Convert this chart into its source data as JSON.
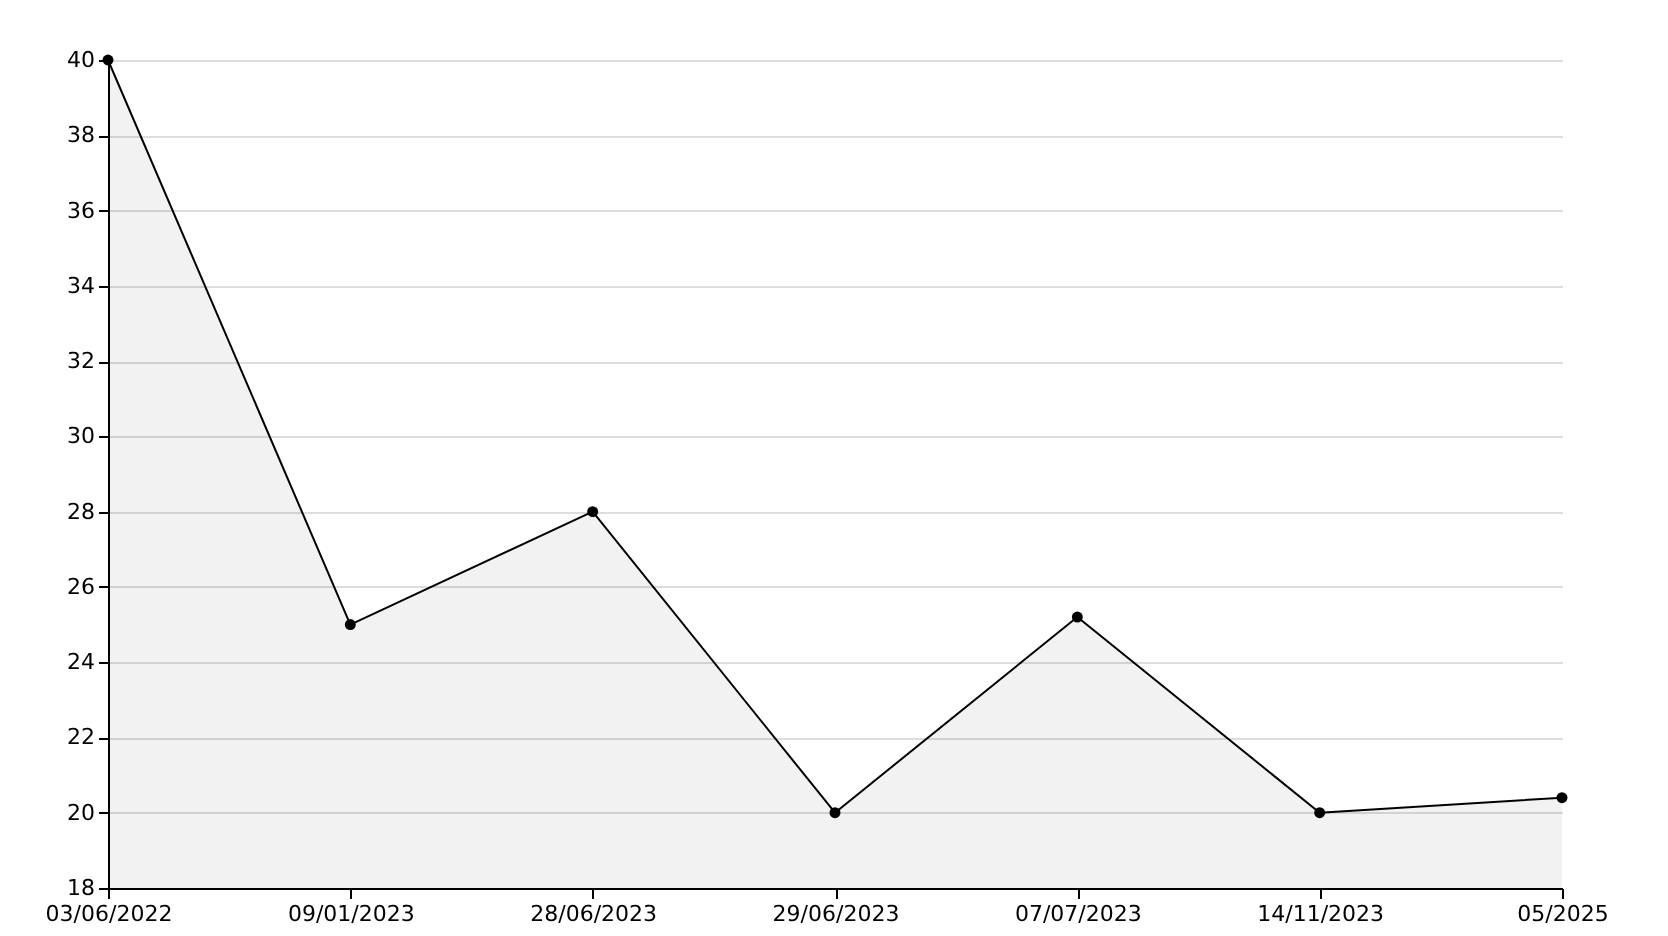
{
  "chart_data": {
    "type": "area",
    "categories": [
      "03/06/2022",
      "09/01/2023",
      "28/06/2023",
      "29/06/2023",
      "07/07/2023",
      "14/11/2023",
      "05/2025"
    ],
    "series": [
      {
        "color": "#000000",
        "values": [
          40,
          25,
          28,
          20,
          25.2,
          20,
          20.4
        ]
      }
    ],
    "ylim": [
      18,
      40
    ],
    "yticks": [
      18,
      20,
      22,
      24,
      26,
      28,
      30,
      32,
      34,
      36,
      38,
      40
    ],
    "grid": "y",
    "marker": "circle",
    "line_style": "solid",
    "legend": false
  }
}
